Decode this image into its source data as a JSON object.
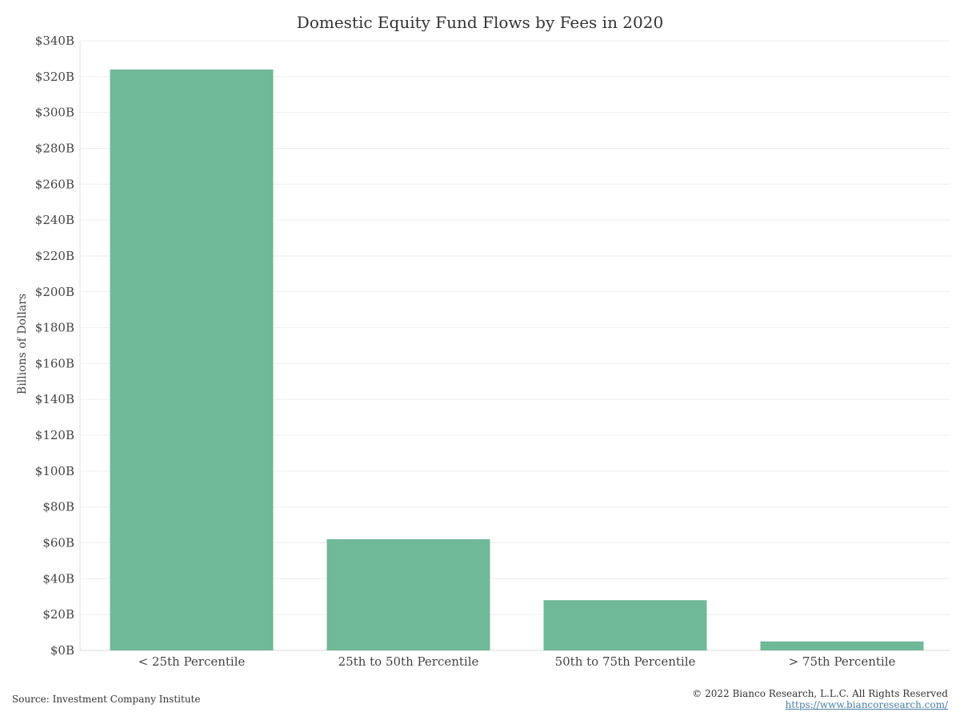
{
  "chart_data": {
    "type": "bar",
    "title": "Domestic Equity Fund Flows by Fees in 2020",
    "xlabel": "",
    "ylabel": "Billions of Dollars",
    "categories": [
      "< 25th Percentile",
      "25th to 50th Percentile",
      "50th to 75th Percentile",
      "> 75th Percentile"
    ],
    "values": [
      324,
      62,
      28,
      5
    ],
    "unit": "billions of dollars",
    "ylim": [
      0,
      340
    ],
    "yticks": [
      0,
      20,
      40,
      60,
      80,
      100,
      120,
      140,
      160,
      180,
      200,
      220,
      240,
      260,
      280,
      300,
      320,
      340
    ],
    "ytick_labels": [
      "$0B",
      "$20B",
      "$40B",
      "$60B",
      "$80B",
      "$100B",
      "$120B",
      "$140B",
      "$160B",
      "$180B",
      "$200B",
      "$220B",
      "$240B",
      "$260B",
      "$280B",
      "$300B",
      "$320B",
      "$340B"
    ],
    "bar_color": "#6fb898",
    "grid": true,
    "legend": "none"
  },
  "footer": {
    "source": "Source: Investment Company Institute",
    "copyright": "© 2022 Bianco Research, L.L.C. All Rights Reserved",
    "link": "https://www.biancoresearch.com/"
  }
}
